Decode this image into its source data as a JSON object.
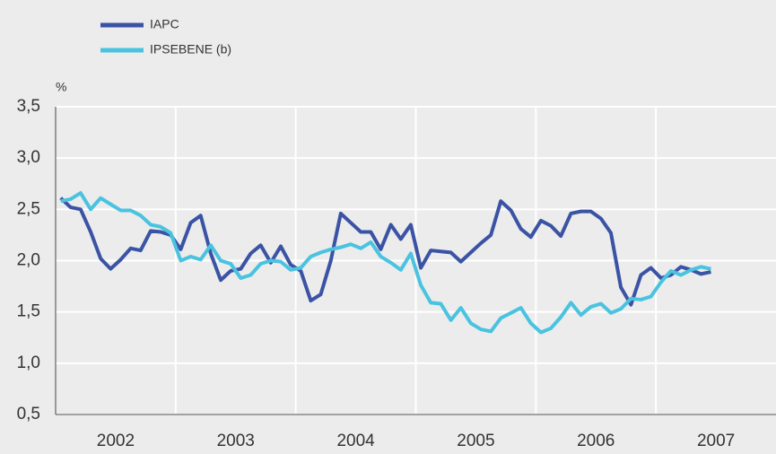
{
  "chart_data": {
    "type": "line",
    "ylabel": "%",
    "categories": [
      "2002",
      "2003",
      "2004",
      "2005",
      "2006",
      "2007"
    ],
    "xlim": [
      2002,
      2008
    ],
    "x": [
      2002.042,
      2002.125,
      2002.208,
      2002.292,
      2002.375,
      2002.458,
      2002.542,
      2002.625,
      2002.708,
      2002.792,
      2002.875,
      2002.958,
      2003.042,
      2003.125,
      2003.208,
      2003.292,
      2003.375,
      2003.458,
      2003.542,
      2003.625,
      2003.708,
      2003.792,
      2003.875,
      2003.958,
      2004.042,
      2004.125,
      2004.208,
      2004.292,
      2004.375,
      2004.458,
      2004.542,
      2004.625,
      2004.708,
      2004.792,
      2004.875,
      2004.958,
      2005.042,
      2005.125,
      2005.208,
      2005.292,
      2005.375,
      2005.458,
      2005.542,
      2005.625,
      2005.708,
      2005.792,
      2005.875,
      2005.958,
      2006.042,
      2006.125,
      2006.208,
      2006.292,
      2006.375,
      2006.458,
      2006.542,
      2006.625,
      2006.708,
      2006.792,
      2006.875,
      2006.958,
      2007.042,
      2007.125,
      2007.208,
      2007.292,
      2007.375,
      2007.458
    ],
    "ylim": [
      0.5,
      3.5
    ],
    "yticks": [
      {
        "value": 0.5,
        "label": "0,5"
      },
      {
        "value": 1.0,
        "label": "1,0"
      },
      {
        "value": 1.5,
        "label": "1,5"
      },
      {
        "value": 2.0,
        "label": "2,0"
      },
      {
        "value": 2.5,
        "label": "2,5"
      },
      {
        "value": 3.0,
        "label": "3,0"
      },
      {
        "value": 3.5,
        "label": "3,5"
      }
    ],
    "grid": true,
    "legend": "top-left",
    "series": [
      {
        "name": "IAPC",
        "color": "#3a53a4",
        "values": [
          2.61,
          2.52,
          2.5,
          2.28,
          2.02,
          1.92,
          2.01,
          2.12,
          2.1,
          2.29,
          2.28,
          2.25,
          2.11,
          2.37,
          2.44,
          2.07,
          1.81,
          1.9,
          1.92,
          2.07,
          2.15,
          1.98,
          2.14,
          1.96,
          1.9,
          1.61,
          1.67,
          2.0,
          2.46,
          2.37,
          2.28,
          2.28,
          2.11,
          2.35,
          2.21,
          2.35,
          1.93,
          2.1,
          2.09,
          2.08,
          1.99,
          2.08,
          2.17,
          2.25,
          2.58,
          2.49,
          2.31,
          2.23,
          2.39,
          2.34,
          2.24,
          2.46,
          2.48,
          2.48,
          2.41,
          2.27,
          1.74,
          1.57,
          1.86,
          1.93,
          1.83,
          1.86,
          1.94,
          1.91,
          1.87,
          1.89
        ]
      },
      {
        "name": "IPSEBENE (b)",
        "color": "#4ac3e0",
        "values": [
          2.58,
          2.6,
          2.66,
          2.5,
          2.61,
          2.55,
          2.49,
          2.49,
          2.44,
          2.35,
          2.33,
          2.27,
          2.0,
          2.04,
          2.01,
          2.15,
          2.0,
          1.97,
          1.83,
          1.86,
          1.97,
          2.0,
          1.99,
          1.91,
          1.93,
          2.04,
          2.08,
          2.11,
          2.13,
          2.16,
          2.12,
          2.18,
          2.04,
          1.98,
          1.91,
          2.07,
          1.76,
          1.59,
          1.58,
          1.42,
          1.54,
          1.39,
          1.33,
          1.31,
          1.44,
          1.49,
          1.54,
          1.39,
          1.3,
          1.34,
          1.45,
          1.59,
          1.47,
          1.55,
          1.58,
          1.49,
          1.53,
          1.63,
          1.62,
          1.65,
          1.79,
          1.9,
          1.86,
          1.91,
          1.94,
          1.92
        ]
      }
    ]
  }
}
